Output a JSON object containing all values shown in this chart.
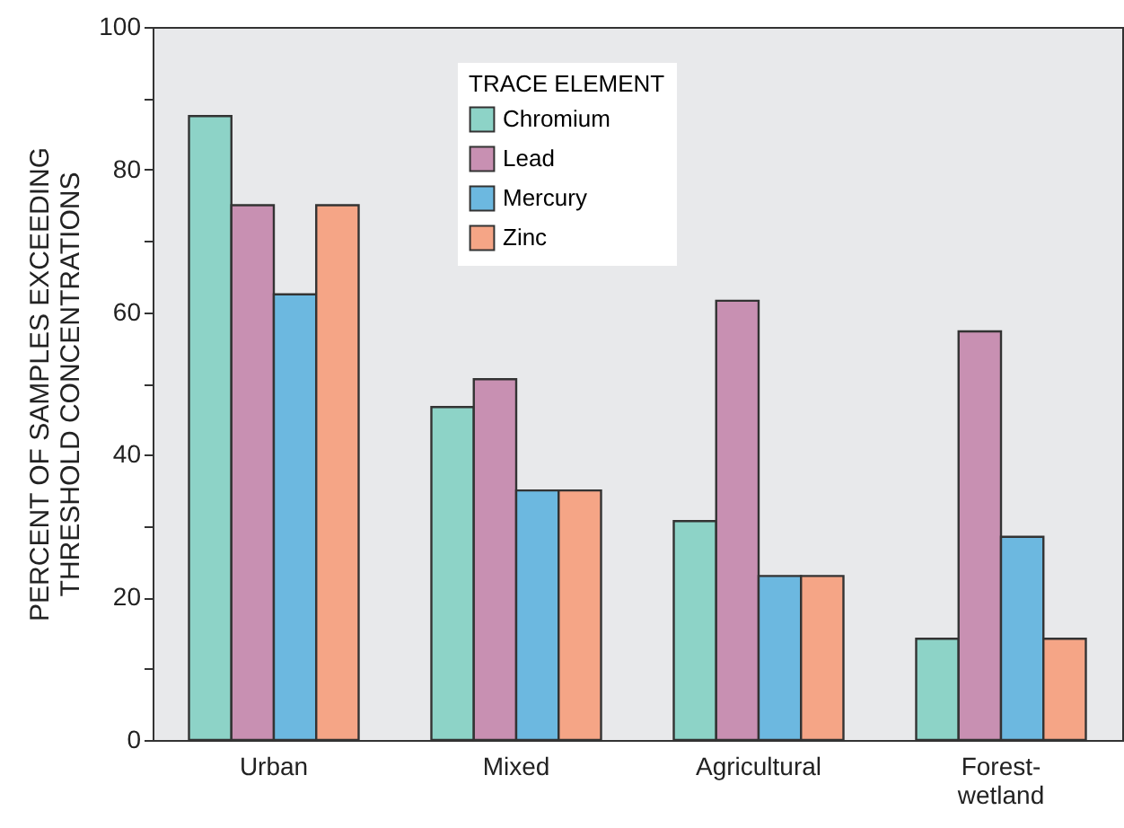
{
  "chart_data": {
    "type": "bar",
    "categories": [
      "Urban",
      "Mixed",
      "Agricultural",
      "Forest-\nwetland"
    ],
    "ylabel": "PERCENT OF SAMPLES EXCEEDING\nTHRESHOLD CONCENTRATIONS",
    "legend_title": "TRACE ELEMENT",
    "series": [
      {
        "name": "Chromium",
        "color": "#8dd3c7",
        "values": [
          87.5,
          46.7,
          30.7,
          14.2
        ]
      },
      {
        "name": "Lead",
        "color": "#c890b2",
        "values": [
          75,
          50.6,
          61.6,
          57.3
        ]
      },
      {
        "name": "Mercury",
        "color": "#6cb8e0",
        "values": [
          62.5,
          35,
          23,
          28.5
        ]
      },
      {
        "name": "Zinc",
        "color": "#f5a586",
        "values": [
          75,
          35,
          23,
          14.2
        ]
      }
    ],
    "ylim": [
      0,
      100
    ],
    "yticks": [
      0,
      {
        "value": 10,
        "label": null
      },
      20,
      {
        "value": 30,
        "label": null
      },
      40,
      {
        "value": 50,
        "label": null
      },
      60,
      {
        "value": 70,
        "label": null
      },
      80,
      {
        "value": 90,
        "label": null
      },
      100
    ],
    "legend": "top",
    "grid": false
  }
}
